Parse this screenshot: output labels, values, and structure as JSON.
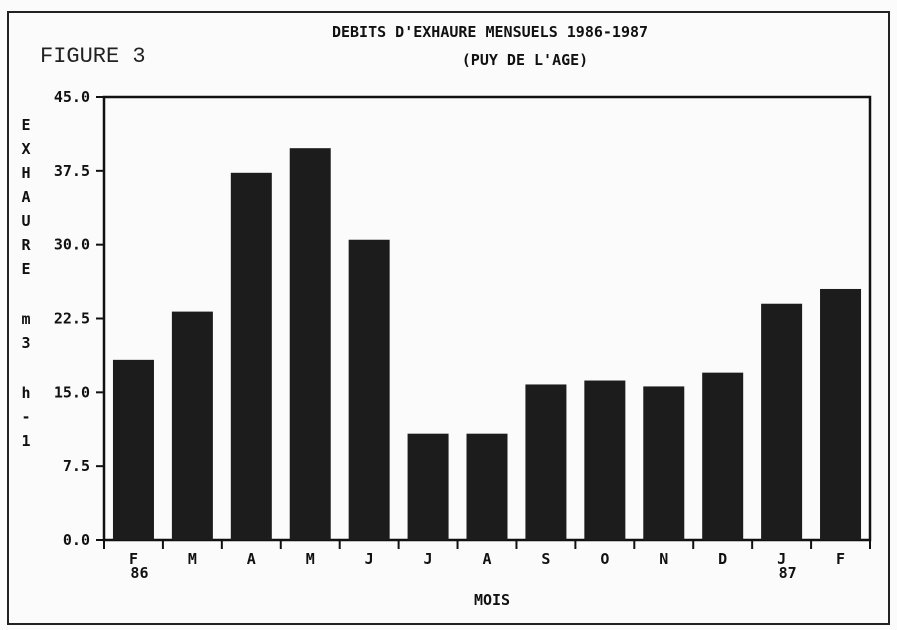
{
  "figure_label": "FIGURE 3",
  "colors": {
    "bar": "#1c1c1c",
    "axis": "#111111",
    "frame": "#222222",
    "background": "#fbfbfb"
  },
  "chart_data": {
    "type": "bar",
    "title": "DEBITS D'EXHAURE MENSUELS 1986-1987",
    "subtitle": "(PUY DE L'AGE)",
    "xlabel": "MOIS",
    "ylabel": [
      "E",
      "X",
      "H",
      "A",
      "U",
      "R",
      "E",
      "",
      "m",
      "3",
      "",
      "h",
      "-",
      "1"
    ],
    "categories": [
      "F",
      "M",
      "A",
      "M",
      "J",
      "J",
      "A",
      "S",
      "O",
      "N",
      "D",
      "J",
      "F"
    ],
    "category_years": [
      "86",
      "",
      "",
      "",
      "",
      "",
      "",
      "",
      "",
      "",
      "",
      "87",
      ""
    ],
    "values": [
      18.3,
      23.2,
      37.3,
      39.8,
      30.5,
      10.8,
      10.8,
      15.8,
      16.2,
      15.6,
      17.0,
      24.0,
      25.5
    ],
    "ylim": [
      0,
      45
    ],
    "yticks": [
      "0.0",
      "7.5",
      "15.0",
      "22.5",
      "30.0",
      "37.5",
      "45.0"
    ],
    "ytick_values": [
      0,
      7.5,
      15,
      22.5,
      30,
      37.5,
      45
    ],
    "grid": false,
    "legend": "none"
  }
}
